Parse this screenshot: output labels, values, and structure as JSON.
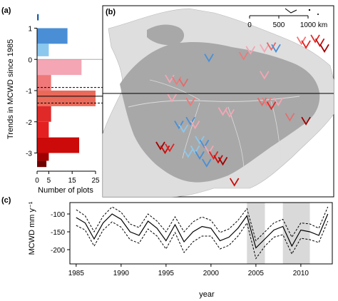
{
  "chart_data": [
    {
      "panel": "(a)",
      "type": "bar",
      "orientation": "horizontal",
      "ylabel": "Trends in MCWD since 1985",
      "xlabel": "Number of plots",
      "y_ticks": [
        1,
        0,
        -1,
        -2,
        -3
      ],
      "x_ticks": [
        0,
        5,
        15,
        25
      ],
      "ylim": [
        -3.4,
        1.4
      ],
      "xlim": [
        0,
        25
      ],
      "bins": [
        {
          "y0": 1.25,
          "y1": 1.45,
          "value": 0.7,
          "color": "#1f5fa8"
        },
        {
          "y0": 0.5,
          "y1": 1.0,
          "value": 13,
          "color": "#4a8fd6"
        },
        {
          "y0": 0.1,
          "y1": 0.5,
          "value": 5,
          "color": "#8cc8ee"
        },
        {
          "y0": -0.5,
          "y1": 0.0,
          "value": 19,
          "color": "#f4a6b4"
        },
        {
          "y0": -1.0,
          "y1": -0.5,
          "value": 6,
          "color": "#f07878"
        },
        {
          "y0": -1.5,
          "y1": -1.0,
          "value": 25,
          "color": "#ea6a5a"
        },
        {
          "y0": -2.0,
          "y1": -1.5,
          "value": 6,
          "color": "#e02a2a"
        },
        {
          "y0": -2.5,
          "y1": -2.0,
          "value": 5,
          "color": "#e52020"
        },
        {
          "y0": -3.0,
          "y1": -2.5,
          "value": 18,
          "color": "#cc0a0a"
        },
        {
          "y0": -3.25,
          "y1": -3.0,
          "value": 5,
          "color": "#a00000"
        },
        {
          "y0": -3.45,
          "y1": -3.25,
          "value": 4,
          "color": "#6e0000"
        }
      ],
      "mean_line": -1.18,
      "ci_lines": [
        -0.9,
        -1.4
      ]
    },
    {
      "panel": "(b)",
      "type": "map",
      "scale_ticks": [
        "0",
        "500",
        "1000 km"
      ],
      "markers": [
        {
          "lon": 0.46,
          "lat": 0.29,
          "color": "#4a8fd6"
        },
        {
          "lon": 0.7,
          "lat": 0.38,
          "color": "#f4a6b4"
        },
        {
          "lon": 0.69,
          "lat": 0.52,
          "color": "#e26a6a"
        },
        {
          "lon": 0.71,
          "lat": 0.52,
          "color": "#f07878"
        },
        {
          "lon": 0.76,
          "lat": 0.52,
          "color": "#f4a6b4"
        },
        {
          "lon": 0.73,
          "lat": 0.54,
          "color": "#e02a2a"
        },
        {
          "lon": 0.81,
          "lat": 0.6,
          "color": "#e27070"
        },
        {
          "lon": 0.88,
          "lat": 0.62,
          "color": "#a00000"
        },
        {
          "lon": 0.52,
          "lat": 0.57,
          "color": "#f4a6b4"
        },
        {
          "lon": 0.55,
          "lat": 0.58,
          "color": "#f4a6b4"
        },
        {
          "lon": 0.61,
          "lat": 0.28,
          "color": "#f07878"
        },
        {
          "lon": 0.64,
          "lat": 0.25,
          "color": "#f4a6b4"
        },
        {
          "lon": 0.7,
          "lat": 0.24,
          "color": "#f4a6b4"
        },
        {
          "lon": 0.73,
          "lat": 0.23,
          "color": "#e26a6a"
        },
        {
          "lon": 0.75,
          "lat": 0.24,
          "color": "#4a8fd6"
        },
        {
          "lon": 0.86,
          "lat": 0.2,
          "color": "#f07878"
        },
        {
          "lon": 0.88,
          "lat": 0.22,
          "color": "#e52020"
        },
        {
          "lon": 0.92,
          "lat": 0.19,
          "color": "#e02a2a"
        },
        {
          "lon": 0.94,
          "lat": 0.21,
          "color": "#cc0a0a"
        },
        {
          "lon": 0.96,
          "lat": 0.24,
          "color": "#a00000"
        },
        {
          "lon": 0.29,
          "lat": 0.4,
          "color": "#f4a6b4"
        },
        {
          "lon": 0.32,
          "lat": 0.41,
          "color": "#f07878"
        },
        {
          "lon": 0.35,
          "lat": 0.42,
          "color": "#e26a6a"
        },
        {
          "lon": 0.3,
          "lat": 0.5,
          "color": "#f4a6b4"
        },
        {
          "lon": 0.38,
          "lat": 0.52,
          "color": "#f07878"
        },
        {
          "lon": 0.33,
          "lat": 0.64,
          "color": "#4a8fd6"
        },
        {
          "lon": 0.35,
          "lat": 0.66,
          "color": "#8cc8ee"
        },
        {
          "lon": 0.38,
          "lat": 0.62,
          "color": "#4a8fd6"
        },
        {
          "lon": 0.4,
          "lat": 0.64,
          "color": "#f4a6b4"
        },
        {
          "lon": 0.42,
          "lat": 0.72,
          "color": "#8cc8ee"
        },
        {
          "lon": 0.44,
          "lat": 0.74,
          "color": "#4a8fd6"
        },
        {
          "lon": 0.46,
          "lat": 0.77,
          "color": "#f4a6b4"
        },
        {
          "lon": 0.48,
          "lat": 0.8,
          "color": "#e52020"
        },
        {
          "lon": 0.5,
          "lat": 0.82,
          "color": "#cc0a0a"
        },
        {
          "lon": 0.52,
          "lat": 0.83,
          "color": "#a00000"
        },
        {
          "lon": 0.4,
          "lat": 0.77,
          "color": "#8cc8ee"
        },
        {
          "lon": 0.42,
          "lat": 0.8,
          "color": "#4a8fd6"
        },
        {
          "lon": 0.37,
          "lat": 0.79,
          "color": "#8cc8ee"
        },
        {
          "lon": 0.45,
          "lat": 0.84,
          "color": "#4a8fd6"
        },
        {
          "lon": 0.25,
          "lat": 0.75,
          "color": "#a00000"
        },
        {
          "lon": 0.27,
          "lat": 0.77,
          "color": "#cc0a0a"
        },
        {
          "lon": 0.29,
          "lat": 0.76,
          "color": "#e52020"
        },
        {
          "lon": 0.57,
          "lat": 0.94,
          "color": "#cc0a0a"
        }
      ]
    },
    {
      "panel": "(c)",
      "type": "line",
      "xlabel": "year",
      "ylabel": "MCWD mm y⁻¹",
      "x_ticks": [
        1985,
        1990,
        1995,
        2000,
        2005,
        2010
      ],
      "y_ticks": [
        -100,
        -150,
        -200
      ],
      "xlim": [
        1984.3,
        2013.5
      ],
      "ylim": [
        -240,
        -68
      ],
      "shaded": [
        [
          2004,
          2006
        ],
        [
          2008,
          2011
        ]
      ],
      "x": [
        1985,
        1986,
        1987,
        1988,
        1989,
        1990,
        1991,
        1992,
        1993,
        1994,
        1995,
        1996,
        1997,
        1998,
        1999,
        2000,
        2001,
        2002,
        2003,
        2004,
        2005,
        2006,
        2007,
        2008,
        2009,
        2010,
        2011,
        2012,
        2013
      ],
      "values": [
        -110,
        -125,
        -170,
        -125,
        -100,
        -115,
        -150,
        -160,
        -120,
        -140,
        -175,
        -130,
        -178,
        -150,
        -135,
        -140,
        -175,
        -165,
        -140,
        -105,
        -195,
        -170,
        -145,
        -135,
        -190,
        -145,
        -150,
        -160,
        -100
      ],
      "ci_upper": [
        -88,
        -105,
        -150,
        -106,
        -80,
        -95,
        -128,
        -138,
        -100,
        -120,
        -150,
        -108,
        -150,
        -122,
        -108,
        -118,
        -152,
        -142,
        -118,
        -85,
        -175,
        -150,
        -125,
        -115,
        -165,
        -125,
        -128,
        -140,
        -80
      ],
      "ci_lower": [
        -132,
        -145,
        -190,
        -145,
        -122,
        -137,
        -172,
        -182,
        -142,
        -162,
        -198,
        -152,
        -208,
        -178,
        -162,
        -162,
        -198,
        -188,
        -162,
        -125,
        -225,
        -190,
        -165,
        -158,
        -212,
        -168,
        -172,
        -180,
        -120
      ],
      "xtick_labels": [
        "1985",
        "1990",
        "1995",
        "2000",
        "2005",
        "2010"
      ],
      "ytick_labels": [
        "-100",
        "-150",
        "-200"
      ]
    }
  ]
}
